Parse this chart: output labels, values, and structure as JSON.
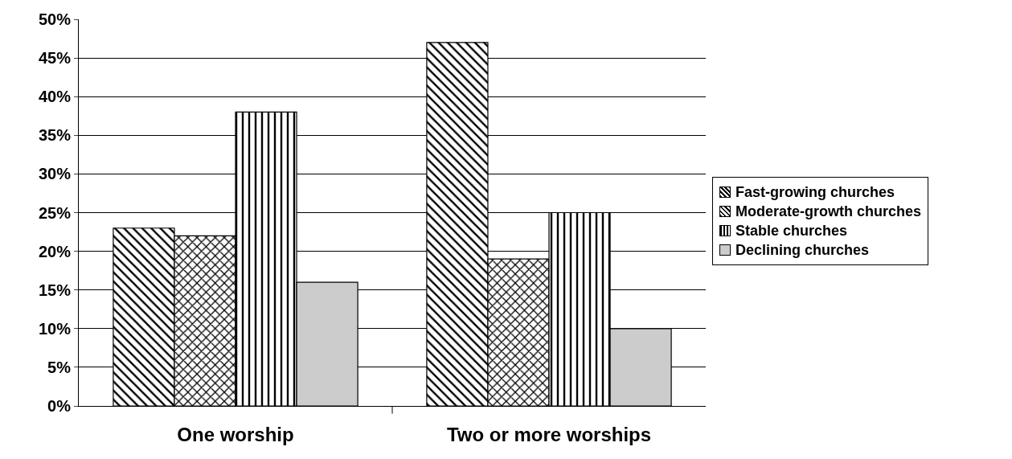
{
  "chart_data": {
    "type": "bar",
    "categories": [
      "One worship",
      "Two or more worships"
    ],
    "series": [
      {
        "name": "Fast-growing churches",
        "color": "#000000",
        "values": [
          23,
          47
        ]
      },
      {
        "name": "Moderate-growth churches",
        "color": "#000000",
        "values": [
          22,
          19
        ]
      },
      {
        "name": "Stable churches",
        "color": "#000000",
        "values": [
          38,
          25
        ]
      },
      {
        "name": "Declining churches",
        "color": "#cccccc",
        "values": [
          16,
          10
        ]
      }
    ],
    "ylim": [
      0,
      50
    ],
    "yticks": [
      {
        "value": 0,
        "label": "0%"
      },
      {
        "value": 5,
        "label": "5%"
      },
      {
        "value": 10,
        "label": "10%"
      },
      {
        "value": 15,
        "label": "15%"
      },
      {
        "value": 20,
        "label": "20%"
      },
      {
        "value": 25,
        "label": "25%"
      },
      {
        "value": 30,
        "label": "30%"
      },
      {
        "value": 35,
        "label": "35%"
      },
      {
        "value": 40,
        "label": "40%"
      },
      {
        "value": 45,
        "label": "45%"
      },
      {
        "value": 50,
        "label": "50%"
      }
    ],
    "grid": "y",
    "legend": "right"
  }
}
